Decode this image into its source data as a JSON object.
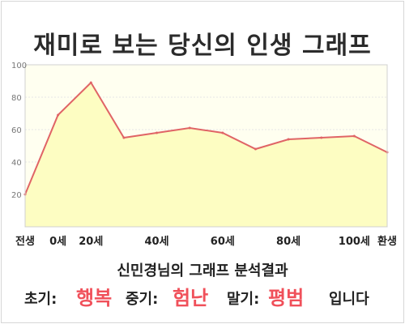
{
  "title": "재미로 보는 당신의 인생 그래프",
  "subtitle": "신민경님의 그래프 분석결과",
  "result": {
    "early_label": "초기:",
    "early_value": "행복",
    "mid_label": "중기:",
    "mid_value": "험난",
    "late_label": "말기:",
    "late_value": "평범",
    "ending": "입니다"
  },
  "colors": {
    "line": "#e06466",
    "area": "#fdfdc2",
    "plot_bg": "#fffff0",
    "highlight": "#f0505a"
  },
  "chart_data": {
    "type": "area",
    "title": "재미로 보는 당신의 인생 그래프",
    "xlabel": "",
    "ylabel": "",
    "ylim": [
      0,
      100
    ],
    "y_ticks": [
      20,
      40,
      60,
      80,
      100
    ],
    "x_ticks": [
      "전생",
      "0세",
      "20세",
      "40세",
      "60세",
      "80세",
      "100세",
      "환생"
    ],
    "grid": true,
    "legend": "none",
    "series": [
      {
        "points": [
          {
            "x": "전생",
            "y": 20
          },
          {
            "x": "0세",
            "y": 69
          },
          {
            "x": "20세",
            "y": 89
          },
          {
            "x": "30세",
            "y": 55
          },
          {
            "x": "40세",
            "y": 58
          },
          {
            "x": "50세",
            "y": 61
          },
          {
            "x": "60세",
            "y": 58
          },
          {
            "x": "70세",
            "y": 48
          },
          {
            "x": "80세",
            "y": 54
          },
          {
            "x": "90세",
            "y": 55
          },
          {
            "x": "100세",
            "y": 56
          },
          {
            "x": "환생",
            "y": 46
          }
        ]
      }
    ]
  }
}
